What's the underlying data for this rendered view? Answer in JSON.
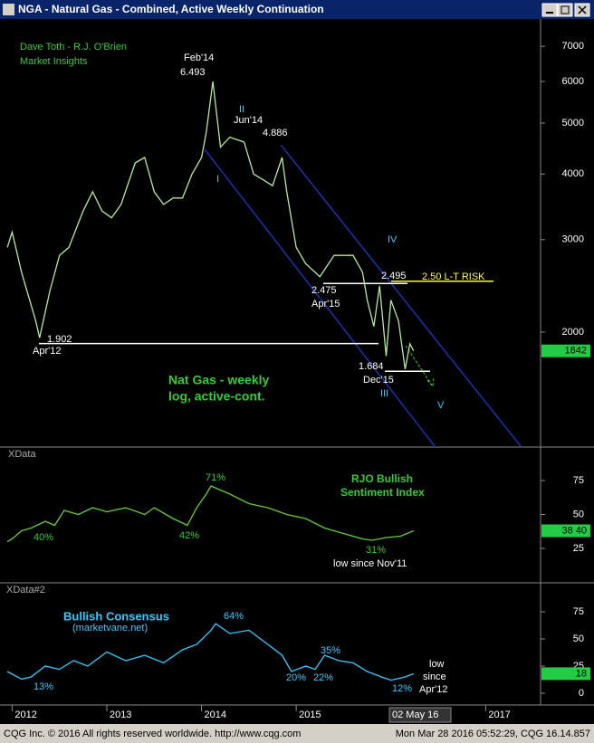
{
  "window": {
    "title": "NGA - Natural Gas - Combined, Active Weekly Continuation",
    "footer_left": "CQG Inc. © 2016 All rights reserved worldwide. http://www.cqg.com",
    "footer_right": "Mon Mar 28 2016 05:52:29, CQG 16.14.857"
  },
  "chart_data": [
    {
      "type": "line",
      "log_scale": true,
      "x": [
        2011.95,
        2012.0,
        2012.1,
        2012.25,
        2012.29,
        2012.4,
        2012.5,
        2012.6,
        2012.75,
        2012.85,
        2012.95,
        2013.05,
        2013.15,
        2013.3,
        2013.4,
        2013.5,
        2013.6,
        2013.7,
        2013.8,
        2013.9,
        2014.0,
        2014.05,
        2014.12,
        2014.2,
        2014.3,
        2014.45,
        2014.55,
        2014.65,
        2014.75,
        2014.85,
        2014.9,
        2015.0,
        2015.1,
        2015.25,
        2015.4,
        2015.5,
        2015.6,
        2015.7,
        2015.75,
        2015.82,
        2015.88,
        2015.95,
        2016.0,
        2016.08,
        2016.15,
        2016.2,
        2016.24
      ],
      "series": [
        {
          "color": "#b8e8a0",
          "values": [
            2900,
            3100,
            2600,
            2100,
            1950,
            2400,
            2800,
            2900,
            3400,
            3700,
            3400,
            3300,
            3500,
            4200,
            4300,
            3700,
            3500,
            3600,
            3600,
            4000,
            4300,
            4800,
            6000,
            4500,
            4700,
            4600,
            4000,
            3900,
            3800,
            4300,
            3700,
            2900,
            2700,
            2550,
            2800,
            2800,
            2800,
            2600,
            2300,
            2050,
            2450,
            1800,
            2300,
            2100,
            1700,
            1900,
            1842
          ]
        }
      ],
      "xlim": [
        2011.92,
        2017.58
      ],
      "ylim": [
        1213,
        7860
      ],
      "yticks": [
        7000,
        6000,
        5000,
        4000,
        3000,
        2000
      ],
      "levels": [
        1902,
        2475,
        1684,
        2500
      ],
      "level_colors": [
        "#ffffff",
        "#ffffff",
        "#ffffff",
        "#ffff33"
      ],
      "last_value": 1842,
      "annotations": [
        "Dave Toth - R.J. O'Brien",
        "Market Insights",
        "Feb'14",
        "6.493",
        "II",
        "Jun'14",
        "4.886",
        "I",
        "IV",
        "2.495",
        "2.50 L-T RISK",
        "2.475",
        "Apr'15",
        "1.902",
        "Apr'12",
        "1.684",
        "Dec'15",
        "III",
        "V",
        "Nat Gas - weekly",
        "log, active-cont."
      ]
    },
    {
      "type": "line",
      "x": [
        2011.95,
        2012.0,
        2012.1,
        2012.2,
        2012.35,
        2012.45,
        2012.55,
        2012.7,
        2012.85,
        2013.0,
        2013.2,
        2013.4,
        2013.5,
        2013.7,
        2013.85,
        2013.95,
        2014.05,
        2014.1,
        2014.3,
        2014.5,
        2014.7,
        2014.9,
        2015.1,
        2015.3,
        2015.5,
        2015.7,
        2015.8,
        2015.95,
        2016.1,
        2016.24
      ],
      "series": [
        {
          "color": "#66cc33",
          "values": [
            30,
            32,
            38,
            40,
            45,
            42,
            53,
            50,
            55,
            52,
            55,
            50,
            55,
            47,
            42,
            55,
            65,
            71,
            65,
            58,
            55,
            50,
            47,
            40,
            36,
            32,
            31,
            33,
            34,
            38
          ]
        }
      ],
      "xlim": [
        2011.92,
        2017.58
      ],
      "ylim": [
        0,
        100
      ],
      "yticks": [
        75,
        50,
        25
      ],
      "last_label": "38 40",
      "annotations": [
        "XData",
        "RJO Bullish",
        "Sentiment Index",
        "40%",
        "42%",
        "71%",
        "31%",
        "low since Nov'11"
      ]
    },
    {
      "type": "line",
      "x": [
        2011.95,
        2012.1,
        2012.2,
        2012.35,
        2012.5,
        2012.65,
        2012.8,
        2013.0,
        2013.2,
        2013.4,
        2013.6,
        2013.8,
        2013.95,
        2014.1,
        2014.15,
        2014.3,
        2014.5,
        2014.7,
        2014.85,
        2014.95,
        2015.1,
        2015.2,
        2015.3,
        2015.45,
        2015.6,
        2015.75,
        2015.9,
        2016.0,
        2016.15,
        2016.24
      ],
      "series": [
        {
          "color": "#33ccff",
          "values": [
            20,
            13,
            15,
            25,
            22,
            30,
            25,
            38,
            30,
            35,
            28,
            40,
            45,
            58,
            64,
            55,
            58,
            45,
            35,
            20,
            25,
            22,
            35,
            30,
            28,
            20,
            15,
            12,
            15,
            18
          ]
        }
      ],
      "xlim": [
        2011.92,
        2017.58
      ],
      "ylim": [
        -10,
        100
      ],
      "yticks": [
        75,
        50,
        25,
        0
      ],
      "xticks": [
        2012,
        2013,
        2014,
        2015,
        2017
      ],
      "cursor_label": "02 May 16",
      "last_value": 18,
      "annotations": [
        "XData#2",
        "Bullish Consensus",
        "(marketvane.net)",
        "13%",
        "64%",
        "20%",
        "22%",
        "35%",
        "12%",
        "low",
        "since",
        "Apr'12"
      ]
    }
  ]
}
